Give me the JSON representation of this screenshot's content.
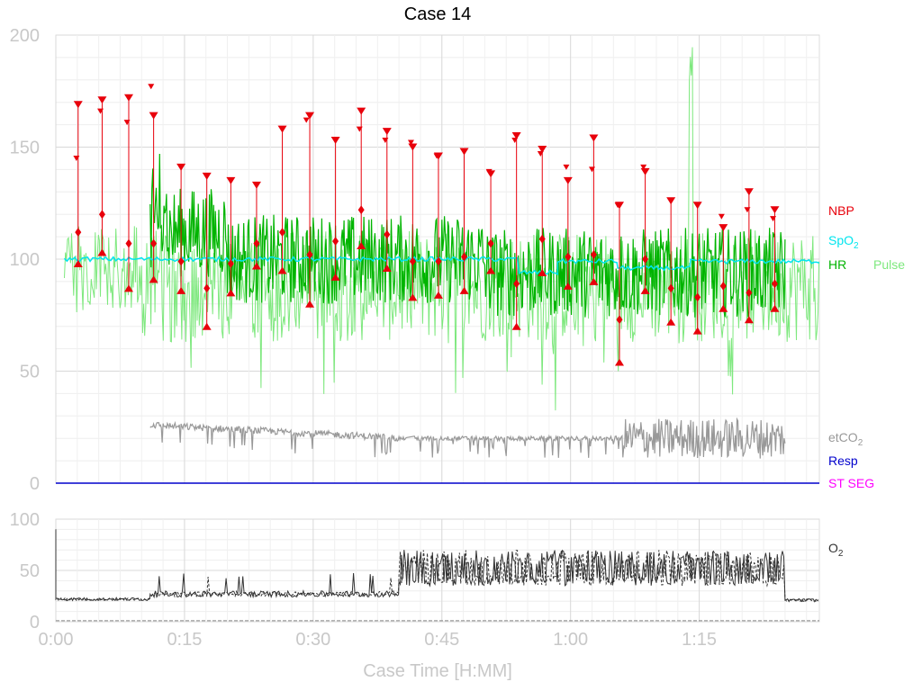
{
  "title": "Case 14",
  "x_axis": {
    "label": "Case Time [H:MM]",
    "ticks": [
      "0:00",
      "0:15",
      "0:30",
      "0:45",
      "1:00",
      "1:15"
    ],
    "tick_minutes": [
      0,
      15,
      30,
      45,
      60,
      75
    ],
    "range_minutes": [
      0,
      89
    ]
  },
  "top_axis": {
    "ticks": [
      "0",
      "50",
      "100",
      "150",
      "200"
    ],
    "range": [
      0,
      200
    ]
  },
  "bottom_axis": {
    "ticks": [
      "0",
      "50",
      "100"
    ],
    "range": [
      0,
      100
    ]
  },
  "legend": {
    "nbp": "NBP",
    "spo2_main": "SpO",
    "spo2_sub": "2",
    "hr": "HR",
    "pulse": "Pulse",
    "etco2_main": "etCO",
    "etco2_sub": "2",
    "resp": "Resp",
    "stseg": "ST SEG",
    "o2_main": "O",
    "o2_sub": "2"
  },
  "colors": {
    "nbp": "#e8000b",
    "spo2": "#00e5ee",
    "hr": "#00b400",
    "pulse": "#7ee87e",
    "etco2": "#999999",
    "resp": "#0000cc",
    "stseg": "#ff00ff",
    "o2": "#333333",
    "axis_text": "#c8c8c8",
    "grid": "#e6e6e6"
  },
  "chart_data": [
    {
      "type": "line",
      "panel": "vitals",
      "ylim": [
        0,
        200
      ],
      "grid": true,
      "nbp": [
        {
          "t": 2.6,
          "sys": 169,
          "map": 112,
          "dia": 98
        },
        {
          "t": 5.4,
          "sys": 171,
          "map": 120,
          "dia": 103
        },
        {
          "t": 8.5,
          "sys": 172,
          "map": 107,
          "dia": 87
        },
        {
          "t": 11.4,
          "sys": 164,
          "map": 107,
          "dia": 91
        },
        {
          "t": 14.6,
          "sys": 141,
          "map": 99,
          "dia": 86
        },
        {
          "t": 17.6,
          "sys": 137,
          "map": 87,
          "dia": 70
        },
        {
          "t": 20.4,
          "sys": 135,
          "map": 98,
          "dia": 85
        },
        {
          "t": 23.4,
          "sys": 133,
          "map": 107,
          "dia": 97
        },
        {
          "t": 26.4,
          "sys": 158,
          "map": 112,
          "dia": 95
        },
        {
          "t": 29.6,
          "sys": 164,
          "map": 102,
          "dia": 80
        },
        {
          "t": 32.6,
          "sys": 153,
          "map": 108,
          "dia": 92
        },
        {
          "t": 35.6,
          "sys": 166,
          "map": 122,
          "dia": 106
        },
        {
          "t": 38.6,
          "sys": 157,
          "map": 111,
          "dia": 96
        },
        {
          "t": 41.6,
          "sys": 150,
          "map": 99,
          "dia": 83
        },
        {
          "t": 44.6,
          "sys": 146,
          "map": 99,
          "dia": 84
        },
        {
          "t": 47.6,
          "sys": 148,
          "map": 101,
          "dia": 86
        },
        {
          "t": 50.7,
          "sys": 138,
          "map": 107,
          "dia": 95
        },
        {
          "t": 53.7,
          "sys": 155,
          "map": 89,
          "dia": 70
        },
        {
          "t": 56.7,
          "sys": 149,
          "map": 109,
          "dia": 94
        },
        {
          "t": 59.7,
          "sys": 135,
          "map": 101,
          "dia": 88
        },
        {
          "t": 62.7,
          "sys": 154,
          "map": 102,
          "dia": 90
        },
        {
          "t": 65.7,
          "sys": 124,
          "map": 73,
          "dia": 54
        },
        {
          "t": 68.7,
          "sys": 139,
          "map": 100,
          "dia": 86
        },
        {
          "t": 71.7,
          "sys": 126,
          "map": 87,
          "dia": 72
        },
        {
          "t": 74.8,
          "sys": 124,
          "map": 83,
          "dia": 68
        },
        {
          "t": 77.8,
          "sys": 114,
          "map": 88,
          "dia": 78
        },
        {
          "t": 80.8,
          "sys": 130,
          "map": 85,
          "dia": 73
        },
        {
          "t": 83.8,
          "sys": 122,
          "map": 89,
          "dia": 78
        }
      ],
      "nbp_extra": [
        {
          "t": 2.4,
          "v": 145
        },
        {
          "t": 5.2,
          "v": 166
        },
        {
          "t": 8.3,
          "v": 161
        },
        {
          "t": 11.1,
          "v": 177
        },
        {
          "t": 29.2,
          "v": 162
        },
        {
          "t": 35.4,
          "v": 158
        },
        {
          "t": 38.4,
          "v": 153
        },
        {
          "t": 41.4,
          "v": 152
        },
        {
          "t": 44.4,
          "v": 146
        },
        {
          "t": 50.5,
          "v": 139
        },
        {
          "t": 53.5,
          "v": 153
        },
        {
          "t": 56.5,
          "v": 147
        },
        {
          "t": 59.5,
          "v": 141
        },
        {
          "t": 62.5,
          "v": 140
        },
        {
          "t": 65.5,
          "v": 124
        },
        {
          "t": 68.5,
          "v": 141
        },
        {
          "t": 77.6,
          "v": 119
        },
        {
          "t": 80.6,
          "v": 122
        },
        {
          "t": 83.6,
          "v": 118
        }
      ],
      "spo2_segments": [
        {
          "t0": 1.0,
          "t1": 54.0,
          "level": 100
        },
        {
          "t0": 54.0,
          "t1": 58.5,
          "level": 94
        },
        {
          "t0": 58.5,
          "t1": 65.5,
          "level": 99
        },
        {
          "t0": 65.5,
          "t1": 74.0,
          "level": 96
        },
        {
          "t0": 74.0,
          "t1": 89.0,
          "level": 99
        }
      ],
      "hr_range": {
        "t0": 11.0,
        "t1": 85.0,
        "base": 100
      },
      "pulse_range": {
        "t0": 1.0,
        "t1": 89.0,
        "base": 88
      },
      "pulse_spike": {
        "t": 74.0,
        "v": 200
      },
      "etco2_range": {
        "t0": 11.0,
        "t1": 85.0,
        "base": 20
      },
      "resp_level": 0,
      "stseg_level": 0
    },
    {
      "type": "line",
      "panel": "o2",
      "ylim": [
        0,
        100
      ],
      "grid": true,
      "o2_series": [
        {
          "t0": 0.0,
          "t1": 11.0,
          "level": 22
        },
        {
          "t0": 11.0,
          "t1": 40.0,
          "level": 30
        },
        {
          "t0": 40.0,
          "t1": 85.0,
          "level": 48
        },
        {
          "t0": 85.0,
          "t1": 89.0,
          "level": 21
        }
      ],
      "o2_start_spike": 90
    }
  ]
}
